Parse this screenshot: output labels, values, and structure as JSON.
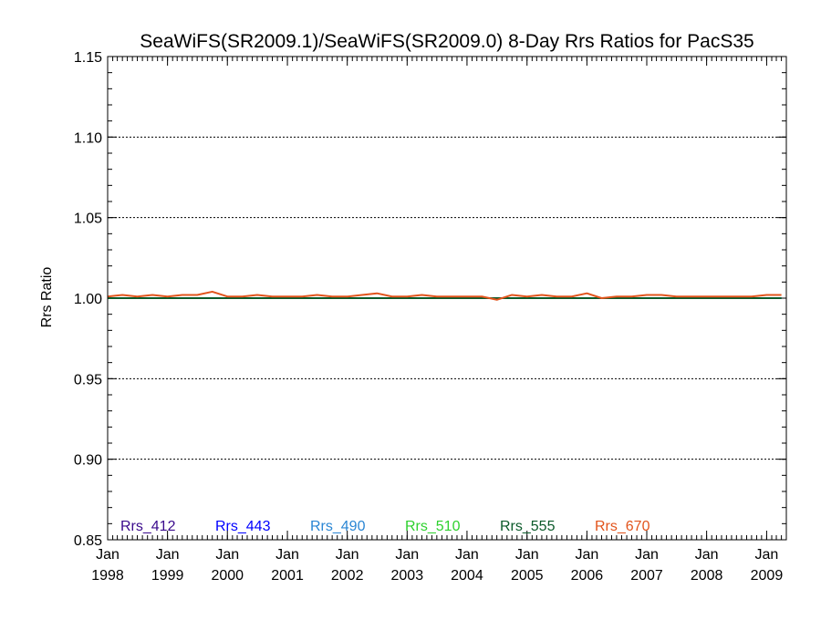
{
  "chart_data": {
    "type": "line",
    "title": "SeaWiFS(SR2009.1)/SeaWiFS(SR2009.0) 8-Day Rrs Ratios for PacS35",
    "xlabel": "",
    "ylabel": "Rrs Ratio",
    "xlim": [
      "1998-01-01",
      "2009-05-01"
    ],
    "ylim": [
      0.85,
      1.15
    ],
    "yticks": [
      "0.85",
      "0.90",
      "0.95",
      "1.00",
      "1.05",
      "1.10",
      "1.15"
    ],
    "yticks_values": [
      0.85,
      0.9,
      0.95,
      1.0,
      1.05,
      1.1,
      1.15
    ],
    "xticks": [
      {
        "month": "Jan",
        "year": "1998"
      },
      {
        "month": "Jan",
        "year": "1999"
      },
      {
        "month": "Jan",
        "year": "2000"
      },
      {
        "month": "Jan",
        "year": "2001"
      },
      {
        "month": "Jan",
        "year": "2002"
      },
      {
        "month": "Jan",
        "year": "2003"
      },
      {
        "month": "Jan",
        "year": "2004"
      },
      {
        "month": "Jan",
        "year": "2005"
      },
      {
        "month": "Jan",
        "year": "2006"
      },
      {
        "month": "Jan",
        "year": "2007"
      },
      {
        "month": "Jan",
        "year": "2008"
      },
      {
        "month": "Jan",
        "year": "2009"
      }
    ],
    "grid": "horizontal dotted",
    "legend_position": "bottom",
    "x": [
      "1998-01-01",
      "1998-04-01",
      "1998-07-01",
      "1998-10-01",
      "1999-01-01",
      "1999-04-01",
      "1999-07-01",
      "1999-10-01",
      "2000-01-01",
      "2000-04-01",
      "2000-07-01",
      "2000-10-01",
      "2001-01-01",
      "2001-04-01",
      "2001-07-01",
      "2001-10-01",
      "2002-01-01",
      "2002-04-01",
      "2002-07-01",
      "2002-10-01",
      "2003-01-01",
      "2003-04-01",
      "2003-07-01",
      "2003-10-01",
      "2004-01-01",
      "2004-04-01",
      "2004-07-01",
      "2004-10-01",
      "2005-01-01",
      "2005-04-01",
      "2005-07-01",
      "2005-10-01",
      "2006-01-01",
      "2006-04-01",
      "2006-07-01",
      "2006-10-01",
      "2007-01-01",
      "2007-04-01",
      "2007-07-01",
      "2007-10-01",
      "2008-01-01",
      "2008-04-01",
      "2008-07-01",
      "2008-10-01",
      "2009-01-01",
      "2009-04-01"
    ],
    "series": [
      {
        "name": "Rrs_412",
        "color": "#3a0a8c",
        "values": [
          1.0,
          1.0,
          1.0,
          1.0,
          1.0,
          1.0,
          1.0,
          1.0,
          1.0,
          1.0,
          1.0,
          1.0,
          1.0,
          1.0,
          1.0,
          1.0,
          1.0,
          1.0,
          1.0,
          1.0,
          1.0,
          1.0,
          1.0,
          1.0,
          1.0,
          1.0,
          1.0,
          1.0,
          1.0,
          1.0,
          1.0,
          1.0,
          1.0,
          1.0,
          1.0,
          1.0,
          1.0,
          1.0,
          1.0,
          1.0,
          1.0,
          1.0,
          1.0,
          1.0,
          1.0,
          1.0
        ]
      },
      {
        "name": "Rrs_443",
        "color": "#0000ff",
        "values": [
          1.0,
          1.0,
          1.0,
          1.0,
          1.0,
          1.0,
          1.0,
          1.0,
          1.0,
          1.0,
          1.0,
          1.0,
          1.0,
          1.0,
          1.0,
          1.0,
          1.0,
          1.0,
          1.0,
          1.0,
          1.0,
          1.0,
          1.0,
          1.0,
          1.0,
          1.0,
          1.0,
          1.0,
          1.0,
          1.0,
          1.0,
          1.0,
          1.0,
          1.0,
          1.0,
          1.0,
          1.0,
          1.0,
          1.0,
          1.0,
          1.0,
          1.0,
          1.0,
          1.0,
          1.0,
          1.0
        ]
      },
      {
        "name": "Rrs_490",
        "color": "#2a86d4",
        "values": [
          1.0,
          1.0,
          1.0,
          1.0,
          1.0,
          1.0,
          1.0,
          1.0,
          1.0,
          1.0,
          1.0,
          1.0,
          1.0,
          1.0,
          1.0,
          1.0,
          1.0,
          1.0,
          1.0,
          1.0,
          1.0,
          1.0,
          1.0,
          1.0,
          1.0,
          1.0,
          1.0,
          1.0,
          1.0,
          1.0,
          1.0,
          1.0,
          1.0,
          1.0,
          1.0,
          1.0,
          1.0,
          1.0,
          1.0,
          1.0,
          1.0,
          1.0,
          1.0,
          1.0,
          1.0,
          1.0
        ]
      },
      {
        "name": "Rrs_510",
        "color": "#2ed12e",
        "values": [
          1.0,
          1.0,
          1.0,
          1.0,
          1.0,
          1.0,
          1.0,
          1.0,
          1.0,
          1.0,
          1.0,
          1.0,
          1.0,
          1.0,
          1.0,
          1.0,
          1.0,
          1.0,
          1.0,
          1.0,
          1.0,
          1.0,
          1.0,
          1.0,
          1.0,
          1.0,
          1.0,
          1.0,
          1.0,
          1.0,
          1.0,
          1.0,
          1.0,
          1.0,
          1.0,
          1.0,
          1.0,
          1.0,
          1.0,
          1.0,
          1.0,
          1.0,
          1.0,
          1.0,
          1.0,
          1.0
        ]
      },
      {
        "name": "Rrs_555",
        "color": "#0b5a2a",
        "values": [
          1.0,
          1.0,
          1.0,
          1.0,
          1.0,
          1.0,
          1.0,
          1.0,
          1.0,
          1.0,
          1.0,
          1.0,
          1.0,
          1.0,
          1.0,
          1.0,
          1.0,
          1.0,
          1.0,
          1.0,
          1.0,
          1.0,
          1.0,
          1.0,
          1.0,
          1.0,
          1.0,
          1.0,
          1.0,
          1.0,
          1.0,
          1.0,
          1.0,
          1.0,
          1.0,
          1.0,
          1.0,
          1.0,
          1.0,
          1.0,
          1.0,
          1.0,
          1.0,
          1.0,
          1.0,
          1.0
        ]
      },
      {
        "name": "Rrs_670",
        "color": "#e2541c",
        "values": [
          1.001,
          1.002,
          1.001,
          1.002,
          1.001,
          1.002,
          1.002,
          1.004,
          1.001,
          1.001,
          1.002,
          1.001,
          1.001,
          1.001,
          1.002,
          1.001,
          1.001,
          1.002,
          1.003,
          1.001,
          1.001,
          1.002,
          1.001,
          1.001,
          1.001,
          1.001,
          0.999,
          1.002,
          1.001,
          1.002,
          1.001,
          1.001,
          1.003,
          1.0,
          1.001,
          1.001,
          1.002,
          1.002,
          1.001,
          1.001,
          1.001,
          1.001,
          1.001,
          1.001,
          1.002,
          1.002
        ]
      }
    ]
  }
}
